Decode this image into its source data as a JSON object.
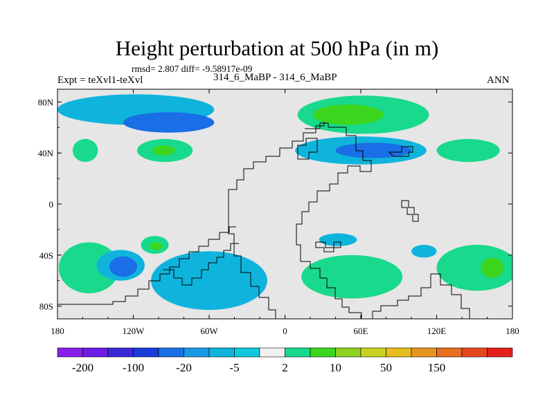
{
  "header": {
    "title": "Height perturbation at 500 hPa (in m)",
    "stats": "rmsd= 2.807  diff= -9.58917e-09",
    "left_label": "Expt = teXvl1-teXvl",
    "center_label": "314_6_MaBP - 314_6_MaBP",
    "right_label": "ANN"
  },
  "chart_data": {
    "type": "heatmap",
    "title": "Height perturbation at 500 hPa (in m)",
    "xlabel": "",
    "ylabel": "",
    "xlim": [
      -180,
      180
    ],
    "ylim": [
      -90,
      90
    ],
    "x_ticks": [
      {
        "value": -180,
        "label": "180"
      },
      {
        "value": -120,
        "label": "120W"
      },
      {
        "value": -60,
        "label": "60W"
      },
      {
        "value": 0,
        "label": "0"
      },
      {
        "value": 60,
        "label": "60E"
      },
      {
        "value": 120,
        "label": "120E"
      },
      {
        "value": 180,
        "label": "180"
      }
    ],
    "y_ticks": [
      {
        "value": 80,
        "label": "80N"
      },
      {
        "value": 40,
        "label": "40N"
      },
      {
        "value": 0,
        "label": "0"
      },
      {
        "value": -40,
        "label": "40S"
      },
      {
        "value": -80,
        "label": "80S"
      }
    ],
    "background_color": "#e6e6e6",
    "colorbar": {
      "colors": [
        "#8a1eeb",
        "#6a1ee6",
        "#3c28d6",
        "#1a3cd9",
        "#1a6ee6",
        "#1a9ae6",
        "#0fb4dc",
        "#0fc8dc",
        "#f0f0f0",
        "#19d98c",
        "#3cd61e",
        "#8cd21e",
        "#c8d21e",
        "#e6be1e",
        "#e6961e",
        "#e66e1e",
        "#e6461e",
        "#e61e1e"
      ],
      "labels": [
        "-200",
        "-100",
        "-20",
        "-5",
        "2",
        "10",
        "50",
        "150"
      ]
    },
    "anomaly_regions": [
      {
        "lon": -118,
        "lat": 74,
        "rlon": 62,
        "rlat": 12,
        "level": "-5"
      },
      {
        "lon": -92,
        "lat": 64,
        "rlon": 36,
        "rlat": 8,
        "level": "-20"
      },
      {
        "lon": -95,
        "lat": 42,
        "rlon": 22,
        "rlat": 9,
        "level": "2"
      },
      {
        "lon": -96,
        "lat": 42,
        "rlon": 9,
        "rlat": 4,
        "level": "10"
      },
      {
        "lon": -158,
        "lat": 42,
        "rlon": 10,
        "rlat": 9,
        "level": "2"
      },
      {
        "lon": 62,
        "lat": 70,
        "rlon": 52,
        "rlat": 15,
        "level": "2"
      },
      {
        "lon": 50,
        "lat": 70,
        "rlon": 28,
        "rlat": 8,
        "level": "10"
      },
      {
        "lon": 60,
        "lat": 42,
        "rlon": 52,
        "rlat": 11,
        "level": "-5"
      },
      {
        "lon": 70,
        "lat": 42,
        "rlon": 30,
        "rlat": 6,
        "level": "-20"
      },
      {
        "lon": 145,
        "lat": 42,
        "rlon": 25,
        "rlat": 9,
        "level": "2"
      },
      {
        "lon": -155,
        "lat": -50,
        "rlon": 24,
        "rlat": 20,
        "level": "2"
      },
      {
        "lon": -130,
        "lat": -48,
        "rlon": 19,
        "rlat": 12,
        "level": "-5"
      },
      {
        "lon": -128,
        "lat": -49,
        "rlon": 11,
        "rlat": 8,
        "level": "-20"
      },
      {
        "lon": -103,
        "lat": -32,
        "rlon": 11,
        "rlat": 7,
        "level": "2"
      },
      {
        "lon": -102,
        "lat": -33,
        "rlon": 5,
        "rlat": 3,
        "level": "10"
      },
      {
        "lon": -60,
        "lat": -60,
        "rlon": 46,
        "rlat": 23,
        "level": "-5"
      },
      {
        "lon": 53,
        "lat": -57,
        "rlon": 40,
        "rlat": 17,
        "level": "2"
      },
      {
        "lon": 152,
        "lat": -50,
        "rlon": 32,
        "rlat": 18,
        "level": "2"
      },
      {
        "lon": 164,
        "lat": -50,
        "rlon": 9,
        "rlat": 8,
        "level": "10"
      },
      {
        "lon": 42,
        "lat": -28,
        "rlon": 15,
        "rlat": 5,
        "level": "-5"
      },
      {
        "lon": 110,
        "lat": -37,
        "rlon": 10,
        "rlat": 5,
        "level": "-5"
      }
    ]
  }
}
